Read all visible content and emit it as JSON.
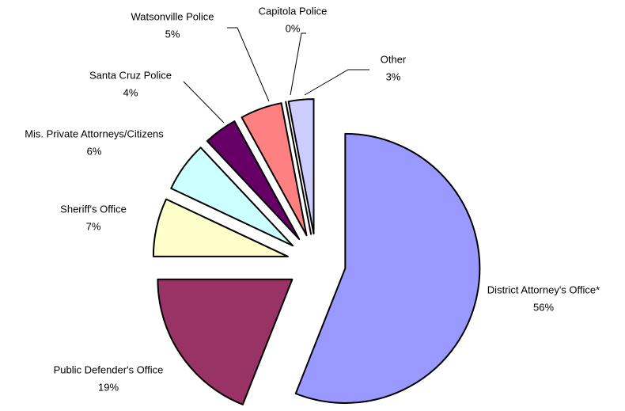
{
  "chart_data": {
    "type": "pie",
    "categories": [
      "District Attorney's Office*",
      "Public Defender's Office",
      "Sheriff's Office",
      "Mis. Private Attorneys/Citizens",
      "Santa Cruz Police",
      "Watsonville Police",
      "Capitola Police",
      "Other"
    ],
    "values": [
      56,
      19,
      7,
      6,
      4,
      5,
      0,
      3
    ],
    "value_labels": [
      "56%",
      "19%",
      "7%",
      "6%",
      "4%",
      "5%",
      "0%",
      "3%"
    ],
    "colors": [
      "#9999ff",
      "#993366",
      "#ffffcc",
      "#ccffff",
      "#660066",
      "#ff8080",
      "#0066cc",
      "#ccccff"
    ]
  }
}
